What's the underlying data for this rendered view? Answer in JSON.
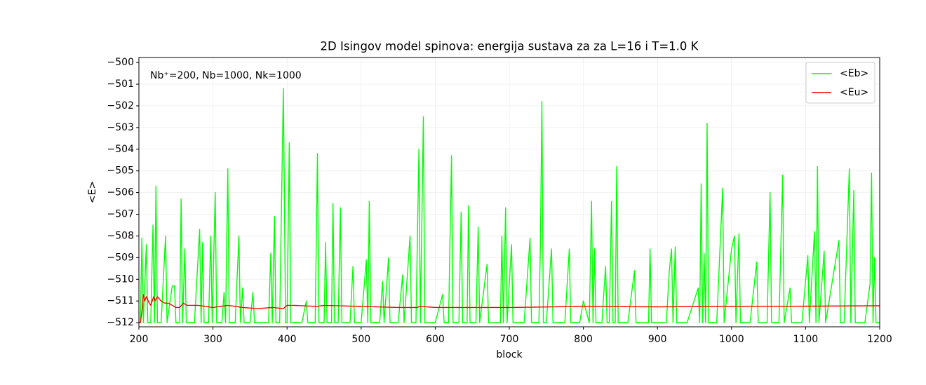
{
  "chart_data": {
    "type": "line",
    "title": "2D Isingov model spinova: energija sustava za za L=16 i T=1.0 K",
    "xlabel": "block",
    "ylabel": "<E>",
    "annotation": "Nb⁺=200, Nb=1000, Nk=1000",
    "xlim": [
      200,
      1200
    ],
    "ylim": [
      -512.19,
      -499.77
    ],
    "xticks": [
      200,
      300,
      400,
      500,
      600,
      700,
      800,
      900,
      1000,
      1100,
      1200
    ],
    "yticks": [
      {
        "value": -500,
        "label": "−500"
      },
      {
        "value": -501,
        "label": "−501"
      },
      {
        "value": -502,
        "label": "−502"
      },
      {
        "value": -503,
        "label": "−503"
      },
      {
        "value": -504,
        "label": "−504"
      },
      {
        "value": -505,
        "label": "−505"
      },
      {
        "value": -506,
        "label": "−506"
      },
      {
        "value": -507,
        "label": "−507"
      },
      {
        "value": -508,
        "label": "−508"
      },
      {
        "value": -509,
        "label": "−509"
      },
      {
        "value": -510,
        "label": "−510"
      },
      {
        "value": -511,
        "label": "−511"
      },
      {
        "value": -512,
        "label": "−512"
      }
    ],
    "grid": true,
    "legend": "upper right",
    "series": [
      {
        "name": "<Eb>",
        "color": "#00ff00",
        "x": [
          200,
          202,
          204,
          206,
          210,
          212,
          216,
          219,
          221,
          223,
          225,
          230,
          236,
          238,
          245,
          248,
          250,
          255,
          257,
          259,
          262,
          264,
          275,
          282,
          284,
          286,
          288,
          294,
          297,
          299,
          303,
          305,
          312,
          315,
          317,
          320,
          322,
          330,
          335,
          337,
          340,
          342,
          350,
          354,
          356,
          375,
          378,
          380,
          383,
          385,
          390,
          395,
          398,
          400,
          403,
          405,
          420,
          426,
          428,
          438,
          441,
          443,
          450,
          452,
          454,
          460,
          462,
          464,
          469,
          472,
          474,
          485,
          489,
          491,
          500,
          507,
          509,
          511,
          513,
          525,
          529,
          531,
          537,
          539,
          550,
          556,
          558,
          566,
          568,
          574,
          578,
          580,
          584,
          586,
          600,
          610,
          612,
          618,
          622,
          624,
          632,
          635,
          637,
          643,
          645,
          647,
          655,
          658,
          660,
          670,
          672,
          688,
          690,
          692,
          695,
          697,
          703,
          705,
          720,
          728,
          730,
          740,
          742,
          744,
          746,
          750,
          757,
          759,
          775,
          781,
          783,
          795,
          800,
          808,
          811,
          813,
          815,
          817,
          825,
          830,
          832,
          835,
          838,
          840,
          843,
          845,
          847,
          860,
          869,
          871,
          888,
          890,
          892,
          905,
          912,
          916,
          919,
          921,
          924,
          926,
          940,
          955,
          957,
          959,
          961,
          963,
          965,
          967,
          969,
          975,
          980,
          988,
          990,
          1000,
          1004,
          1006,
          1010,
          1012,
          1025,
          1034,
          1036,
          1048,
          1052,
          1054,
          1064,
          1069,
          1071,
          1079,
          1081,
          1095,
          1103,
          1105,
          1112,
          1114,
          1116,
          1118,
          1125,
          1127,
          1145,
          1147,
          1152,
          1159,
          1161,
          1165,
          1167,
          1180,
          1187,
          1189,
          1191,
          1193,
          1195,
          1200
        ],
        "values": [
          -512,
          -512,
          -508.1,
          -512,
          -508.4,
          -512,
          -512,
          -507.5,
          -512,
          -505.7,
          -512,
          -512,
          -508,
          -512,
          -510.3,
          -510.3,
          -512,
          -512,
          -506.3,
          -512,
          -508.6,
          -512,
          -512,
          -507.7,
          -512,
          -508.3,
          -512,
          -512,
          -508,
          -512,
          -506,
          -512,
          -512,
          -510.6,
          -512,
          -504.9,
          -512,
          -512,
          -508,
          -512,
          -510.4,
          -512,
          -512,
          -510.6,
          -512,
          -512,
          -508.8,
          -512,
          -507.1,
          -512,
          -512,
          -501.2,
          -512,
          -512,
          -503.7,
          -512,
          -512,
          -511,
          -512,
          -512,
          -504.2,
          -512,
          -512,
          -508.3,
          -512,
          -512,
          -506.5,
          -512,
          -512,
          -506.7,
          -512,
          -512,
          -509.4,
          -512,
          -512,
          -509.1,
          -512,
          -506.4,
          -512,
          -512,
          -510.1,
          -512,
          -509,
          -512,
          -512,
          -509.8,
          -512,
          -508,
          -512,
          -512,
          -504,
          -512,
          -502.5,
          -512,
          -512,
          -510.7,
          -512,
          -512,
          -504.3,
          -512,
          -512,
          -506.9,
          -512,
          -512,
          -506.6,
          -512,
          -512,
          -507.6,
          -512,
          -509.3,
          -512,
          -512,
          -508,
          -512,
          -506.7,
          -512,
          -508.4,
          -512,
          -512,
          -508.1,
          -512,
          -512,
          -508.4,
          -501.8,
          -512,
          -512,
          -508.6,
          -512,
          -512,
          -508.6,
          -512,
          -512,
          -511,
          -512,
          -506.4,
          -512,
          -508.6,
          -512,
          -512,
          -509.4,
          -512,
          -512,
          -506.4,
          -512,
          -512,
          -504.8,
          -512,
          -512,
          -509.6,
          -512,
          -512,
          -508.6,
          -512,
          -512,
          -512,
          -509.6,
          -508.6,
          -512,
          -508.5,
          -512,
          -512,
          -510.4,
          -512,
          -505.6,
          -512,
          -508.8,
          -512,
          -502.8,
          -512,
          -512,
          -512,
          -505.8,
          -512,
          -508.6,
          -508,
          -512,
          -507.9,
          -512,
          -512,
          -509.2,
          -512,
          -512,
          -506,
          -512,
          -512,
          -505.2,
          -512,
          -510.4,
          -512,
          -512,
          -508.9,
          -512,
          -507.8,
          -512,
          -504.8,
          -512,
          -508.7,
          -512,
          -508.2,
          -512,
          -512,
          -504.9,
          -512,
          -505.9,
          -512,
          -512,
          -510.2,
          -505.1,
          -512,
          -509,
          -512,
          -512
        ]
      },
      {
        "name": "<Eu>",
        "color": "#ff0000",
        "x": [
          200,
          202,
          204,
          206,
          208,
          210,
          214,
          216,
          220,
          222,
          225,
          230,
          235,
          240,
          250,
          255,
          260,
          265,
          280,
          300,
          320,
          340,
          360,
          380,
          395,
          400,
          410,
          440,
          450,
          500,
          550,
          575,
          580,
          600,
          700,
          800,
          900,
          1000,
          1100,
          1200
        ],
        "values": [
          -512,
          -512,
          -511.5,
          -510.7,
          -511,
          -510.8,
          -511.1,
          -511.2,
          -510.8,
          -511,
          -510.8,
          -511,
          -511.1,
          -511.1,
          -511.3,
          -511.3,
          -511.1,
          -511.2,
          -511.2,
          -511.3,
          -511.2,
          -511.3,
          -511.35,
          -511.3,
          -511.35,
          -511.2,
          -511.2,
          -511.25,
          -511.2,
          -511.25,
          -511.3,
          -511.3,
          -511.25,
          -511.3,
          -511.3,
          -511.25,
          -511.27,
          -511.25,
          -511.24,
          -511.22
        ]
      }
    ]
  }
}
